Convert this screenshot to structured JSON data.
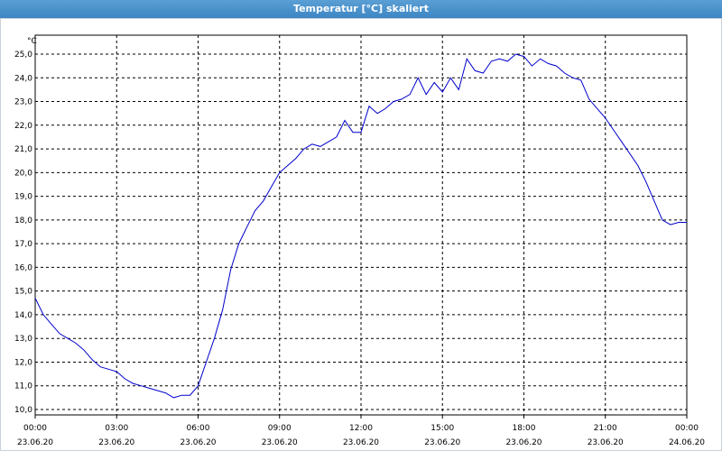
{
  "window": {
    "title": "Temperatur [°C] skaliert"
  },
  "chart_data": {
    "type": "line",
    "title": "Temperatur [°C] skaliert",
    "ylabel": "°C",
    "ylim": [
      9.8,
      25.6
    ],
    "yticks": [
      "10,0",
      "11,0",
      "12,0",
      "13,0",
      "14,0",
      "15,0",
      "16,0",
      "17,0",
      "18,0",
      "19,0",
      "20,0",
      "21,0",
      "22,0",
      "23,0",
      "24,0",
      "25,0"
    ],
    "xlim": [
      0,
      24
    ],
    "xticks": [
      {
        "t": "00:00",
        "d": "23.06.20"
      },
      {
        "t": "03:00",
        "d": "23.06.20"
      },
      {
        "t": "06:00",
        "d": "23.06.20"
      },
      {
        "t": "09:00",
        "d": "23.06.20"
      },
      {
        "t": "12:00",
        "d": "23.06.20"
      },
      {
        "t": "15:00",
        "d": "23.06.20"
      },
      {
        "t": "18:00",
        "d": "23.06.20"
      },
      {
        "t": "21:00",
        "d": "23.06.20"
      },
      {
        "t": "00:00",
        "d": "24.06.20"
      }
    ],
    "grid": true,
    "colors": {
      "series": "#0000cc",
      "grid": "#000000"
    },
    "series": [
      {
        "x": [
          0,
          0.3,
          0.6,
          0.9,
          1.2,
          1.5,
          1.8,
          2.1,
          2.4,
          2.7,
          3.0,
          3.3,
          3.6,
          3.9,
          4.2,
          4.5,
          4.8,
          5.1,
          5.4,
          5.7,
          6.0,
          6.3,
          6.6,
          6.9,
          7.2,
          7.5,
          7.8,
          8.1,
          8.4,
          8.7,
          9.0,
          9.3,
          9.6,
          9.9,
          10.2,
          10.5,
          10.8,
          11.1,
          11.4,
          11.7,
          12.0,
          12.3,
          12.6,
          12.9,
          13.2,
          13.5,
          13.8,
          14.1,
          14.4,
          14.7,
          15.0,
          15.3,
          15.6,
          15.9,
          16.2,
          16.5,
          16.8,
          17.1,
          17.4,
          17.7,
          18.0,
          18.3,
          18.6,
          18.9,
          19.2,
          19.5,
          19.8,
          20.1,
          20.4,
          20.7,
          21.0,
          21.3,
          21.6,
          21.9,
          22.2,
          22.5,
          22.8,
          23.1,
          23.4,
          23.7,
          24.0
        ],
        "values": [
          14.7,
          14.0,
          13.6,
          13.2,
          13.0,
          12.8,
          12.5,
          12.1,
          11.8,
          11.7,
          11.6,
          11.3,
          11.1,
          11.0,
          10.9,
          10.8,
          10.7,
          10.5,
          10.6,
          10.6,
          11.0,
          12.0,
          13.0,
          14.2,
          15.9,
          17.0,
          17.7,
          18.4,
          18.8,
          19.4,
          20.0,
          20.3,
          20.6,
          21.0,
          21.2,
          21.1,
          21.3,
          21.5,
          22.2,
          21.7,
          21.7,
          22.8,
          22.5,
          22.7,
          23.0,
          23.1,
          23.3,
          24.0,
          23.3,
          23.8,
          23.4,
          24.0,
          23.5,
          24.8,
          24.3,
          24.2,
          24.7,
          24.8,
          24.7,
          25.0,
          24.9,
          24.5,
          24.8,
          24.6,
          24.5,
          24.2,
          24.0,
          23.9,
          23.1,
          22.7,
          22.3,
          21.8,
          21.3,
          20.8,
          20.3,
          19.6,
          18.8,
          18.0,
          17.8,
          17.9,
          17.9
        ]
      }
    ]
  }
}
